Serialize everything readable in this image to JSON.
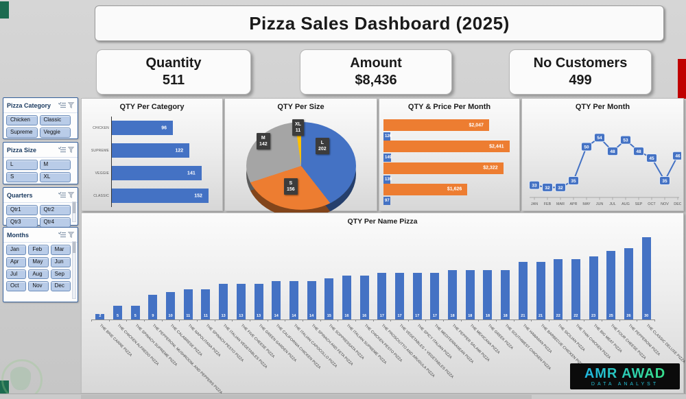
{
  "title": "Pizza Sales Dashboard (2025)",
  "kpis": [
    {
      "label": "Quantity",
      "value": "511"
    },
    {
      "label": "Amount",
      "value": "$8,436"
    },
    {
      "label": "No Customers",
      "value": "499"
    }
  ],
  "slicers": [
    {
      "title": "Pizza Category",
      "columns": 2,
      "items": [
        "Chicken",
        "Classic",
        "Supreme",
        "Veggie"
      ]
    },
    {
      "title": "Pizza Size",
      "columns": 2,
      "items": [
        "L",
        "M",
        "S",
        "XL"
      ]
    },
    {
      "title": "Quarters",
      "columns": 2,
      "items": [
        "Qtr1",
        "Qtr2",
        "Qtr3",
        "Qtr4"
      ]
    },
    {
      "title": "Months",
      "columns": 3,
      "items": [
        "Jan",
        "Feb",
        "Mar",
        "Apr",
        "May",
        "Jun",
        "Jul",
        "Aug",
        "Sep",
        "Oct",
        "Nov",
        "Dec"
      ]
    }
  ],
  "slicer_header_icons": [
    "multiselect-icon",
    "clear-filter-icon"
  ],
  "chart_data": [
    {
      "type": "bar",
      "orientation": "horizontal",
      "title": "QTY Per Category",
      "categories": [
        "CHICKEN",
        "SUPREME",
        "VEGGIE",
        "CLASSIC"
      ],
      "values": [
        96,
        122,
        141,
        152
      ],
      "bar_color": "#4472C4",
      "xmax": 165,
      "data_labels": true
    },
    {
      "type": "pie",
      "title": "QTY Per Size",
      "style": "3d",
      "labels": [
        "L",
        "S",
        "M",
        "XL"
      ],
      "values": [
        202,
        156,
        142,
        11
      ],
      "colors": [
        "#4472C4",
        "#ED7D31",
        "#A5A5A5",
        "#FFC000"
      ]
    },
    {
      "type": "bar",
      "orientation": "horizontal",
      "title": "QTY & Price Per Month",
      "note": "4 quarter groups, top to bottom Qtr4..Qtr1, no axis labels shown",
      "series": [
        {
          "name": "Price",
          "color": "#ED7D31",
          "values": [
            2047,
            2441,
            2322,
            1626
          ],
          "labels": [
            "$2,047",
            "$2,441",
            "$2,322",
            "$1,626"
          ]
        },
        {
          "name": "QTY",
          "color": "#4472C4",
          "values": [
            126,
            149,
            139,
            97
          ],
          "labels": [
            "126",
            "149",
            "139",
            "97"
          ]
        }
      ],
      "xmax": 2500
    },
    {
      "type": "line",
      "title": "QTY Per Month",
      "categories": [
        "JAN",
        "FEB",
        "MAR",
        "APR",
        "MAY",
        "JUN",
        "JUL",
        "AUG",
        "SEP",
        "OCT",
        "NOV",
        "DEC"
      ],
      "values": [
        33,
        32,
        32,
        35,
        50,
        54,
        48,
        53,
        48,
        45,
        35,
        46
      ],
      "line_color": "#4472C4",
      "marker": "rounded-square-label",
      "ylim": [
        25,
        60
      ]
    },
    {
      "type": "bar",
      "orientation": "vertical",
      "title": "QTY Per Name Pizza",
      "categories": [
        "THE BRIE CARRE PIZZA",
        "THE CHICKEN ALFREDO PIZZA",
        "THE SPINACH SUPREME PIZZA",
        "THE PEPPERONI, MUSHROOM, AND PEPPERS PIZZA",
        "THE CALABRESE PIZZA",
        "THE NAPOLITANA PIZZA",
        "THE SPINACH PESTO PIZZA",
        "THE ITALIAN VEGETABLES PIZZA",
        "THE FIVE CHEESE PIZZA",
        "THE GREEN GARDEN PIZZA",
        "THE CALIFORNIA CHICKEN PIZZA",
        "THE ITALIAN CAPOCOLLO PIZZA",
        "THE SPINACH AND FETA PIZZA",
        "THE SOPPRESSATA PIZZA",
        "THE ITALIAN SUPREME PIZZA",
        "THE CHICKEN PESTO PIZZA",
        "THE PROSCIUTTO AND ARUGULA PIZZA",
        "THE VEGETABLES + VEGETABLES PIZZA",
        "THE SPICY ITALIAN PIZZA",
        "THE MEDITERRANEAN PIZZA",
        "THE PEPPER SALAMI PIZZA",
        "THE MEXICANA PIZZA",
        "THE GREEK PIZZA",
        "THE SOUTHWEST CHICKEN PIZZA",
        "THE HAWAIIAN PIZZA",
        "THE BARBECUE CHICKEN PIZZA",
        "THE SICILIAN PIZZA",
        "THE THAI CHICKEN PIZZA",
        "THE BIG MEAT PIZZA",
        "THE FOUR CHEESE PIZZA",
        "THE PEPPERONI PIZZA",
        "THE CLASSIC DELUXE PIZZA"
      ],
      "values": [
        2,
        5,
        5,
        9,
        10,
        11,
        11,
        13,
        13,
        13,
        14,
        14,
        14,
        15,
        16,
        16,
        17,
        17,
        17,
        17,
        18,
        18,
        18,
        18,
        21,
        21,
        22,
        22,
        23,
        25,
        26,
        30
      ],
      "bar_color": "#4472C4",
      "ymax": 30,
      "data_labels": true
    }
  ],
  "branding": {
    "name": "AMR AWAD",
    "subtitle": "DATA ANALYST"
  },
  "colors": {
    "bar_blue": "#4472C4",
    "orange": "#ED7D31",
    "gray": "#A5A5A5",
    "gold": "#FFC000",
    "red_edge": "#C00000",
    "green_corner": "#1C6B50",
    "slicer_button": "#B9CCE8"
  }
}
